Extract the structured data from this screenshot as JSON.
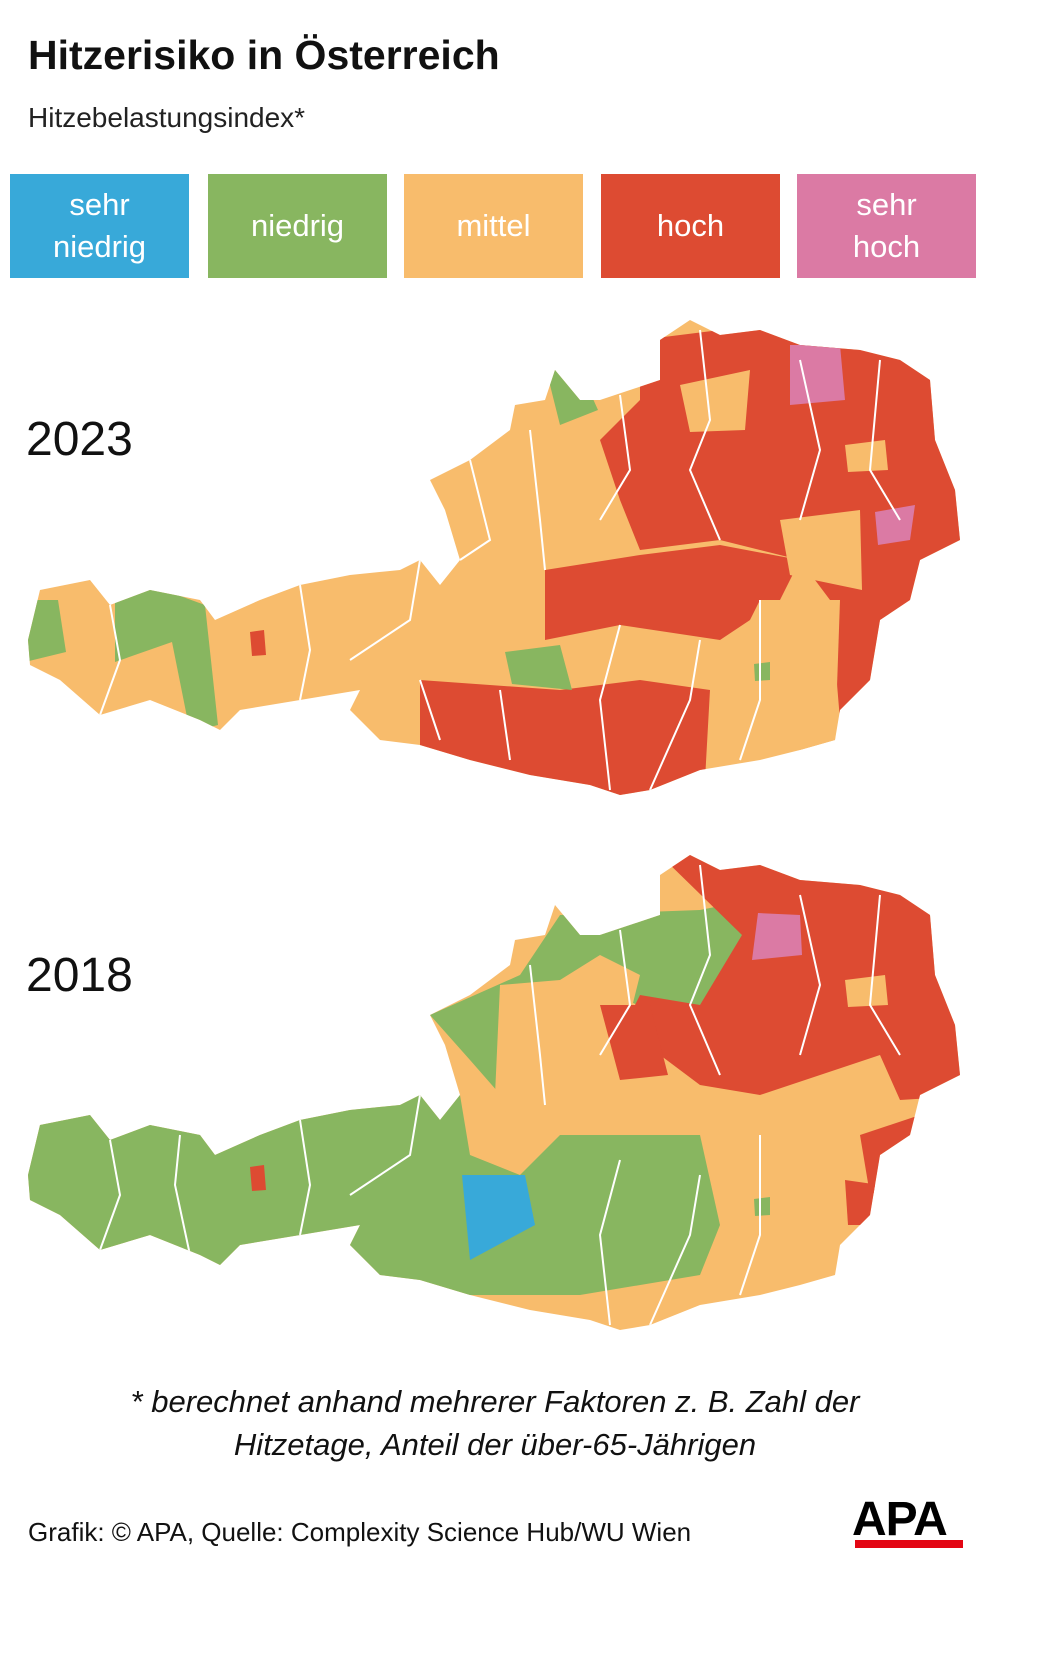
{
  "header": {
    "title": "Hitzerisiko in Österreich",
    "subtitle": "Hitzebelastungsindex*"
  },
  "legend": [
    {
      "label": "sehr niedrig",
      "color": "#38a9d9"
    },
    {
      "label": "niedrig",
      "color": "#88b660"
    },
    {
      "label": "mittel",
      "color": "#f8bc6c"
    },
    {
      "label": "hoch",
      "color": "#dd4b32"
    },
    {
      "label": "sehr hoch",
      "color": "#db7aa4"
    }
  ],
  "maps": [
    {
      "year": "2023"
    },
    {
      "year": "2018"
    }
  ],
  "footnote": "* berechnet anhand mehrerer Faktoren z. B. Zahl der Hitzetage, Anteil der über-65-Jährigen",
  "source": "Grafik: © APA, Quelle: Complexity Science Hub/WU Wien",
  "logo": "APA"
}
